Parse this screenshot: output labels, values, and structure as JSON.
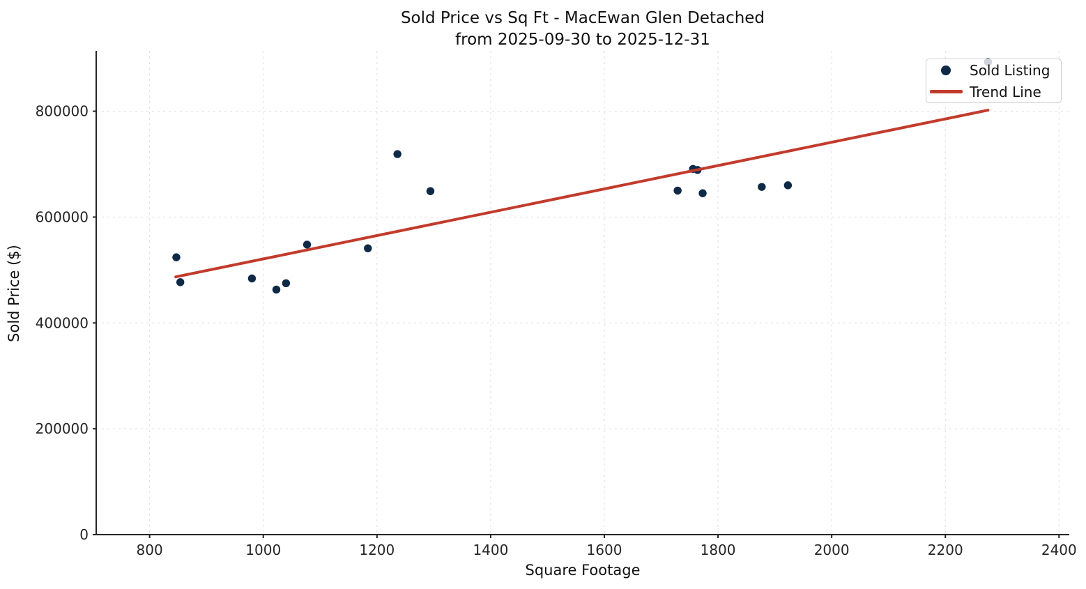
{
  "chart_data": {
    "type": "scatter",
    "title_line1": "Sold Price vs Sq Ft - MacEwan Glen Detached",
    "title_line2": "from 2025-09-30 to 2025-12-31",
    "xlabel": "Square Footage",
    "ylabel": "Sold Price ($)",
    "xlim": [
      706,
      2418
    ],
    "ylim": [
      0,
      914000
    ],
    "x_ticks": [
      800,
      1000,
      1200,
      1400,
      1600,
      1800,
      2000,
      2200,
      2400
    ],
    "y_ticks": [
      0,
      200000,
      400000,
      600000,
      800000
    ],
    "grid": true,
    "legend": {
      "position": "upper-right",
      "entries": [
        "Sold Listing",
        "Trend Line"
      ]
    },
    "series": [
      {
        "name": "Sold Listing",
        "kind": "scatter",
        "color": "#0e2a47",
        "marker_radius": 5.7,
        "points": [
          [
            847,
            524000
          ],
          [
            854,
            477000
          ],
          [
            980,
            484000
          ],
          [
            1023,
            463000
          ],
          [
            1040,
            475000
          ],
          [
            1077,
            548000
          ],
          [
            1184,
            541000
          ],
          [
            1236,
            719000
          ],
          [
            1294,
            649000
          ],
          [
            1729,
            650000
          ],
          [
            1756,
            691000
          ],
          [
            1764,
            689000
          ],
          [
            1773,
            645000
          ],
          [
            1877,
            657000
          ],
          [
            1923,
            660000
          ],
          [
            2275,
            893000
          ]
        ]
      },
      {
        "name": "Trend Line",
        "kind": "line",
        "color": "#c23b2c",
        "line_width": 4,
        "points": [
          [
            846,
            487000
          ],
          [
            2275,
            802000
          ]
        ]
      }
    ],
    "colors": {
      "point": "#0e2a47",
      "trend": "#c23b2c",
      "grid": "#dedede",
      "spine": "#262626",
      "text": "#111111"
    }
  }
}
